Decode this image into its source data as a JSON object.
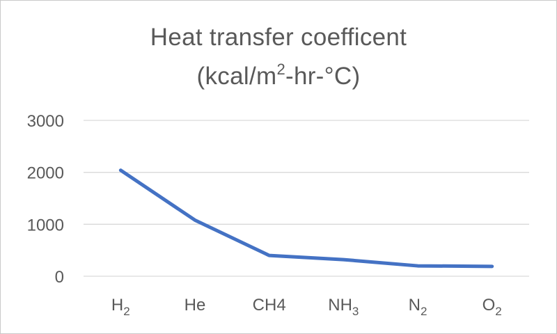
{
  "chart_data": {
    "type": "line",
    "title_line1": "Heat transfer coefficent",
    "title_line2_pre": "(kcal/m",
    "title_line2_sup": "2",
    "title_line2_post": "-hr-°C)",
    "categories": [
      {
        "base": "H",
        "sub": "2"
      },
      {
        "base": "He",
        "sub": ""
      },
      {
        "base": "CH4",
        "sub": ""
      },
      {
        "base": "NH",
        "sub": "3"
      },
      {
        "base": "N",
        "sub": "2"
      },
      {
        "base": "O",
        "sub": "2"
      }
    ],
    "series": [
      {
        "values": [
          2040,
          1080,
          400,
          320,
          200,
          190
        ],
        "color": "#4472c4"
      }
    ],
    "ylim": [
      0,
      3000
    ],
    "yticks": [
      0,
      1000,
      2000,
      3000
    ],
    "grid": true,
    "legend": "none"
  }
}
